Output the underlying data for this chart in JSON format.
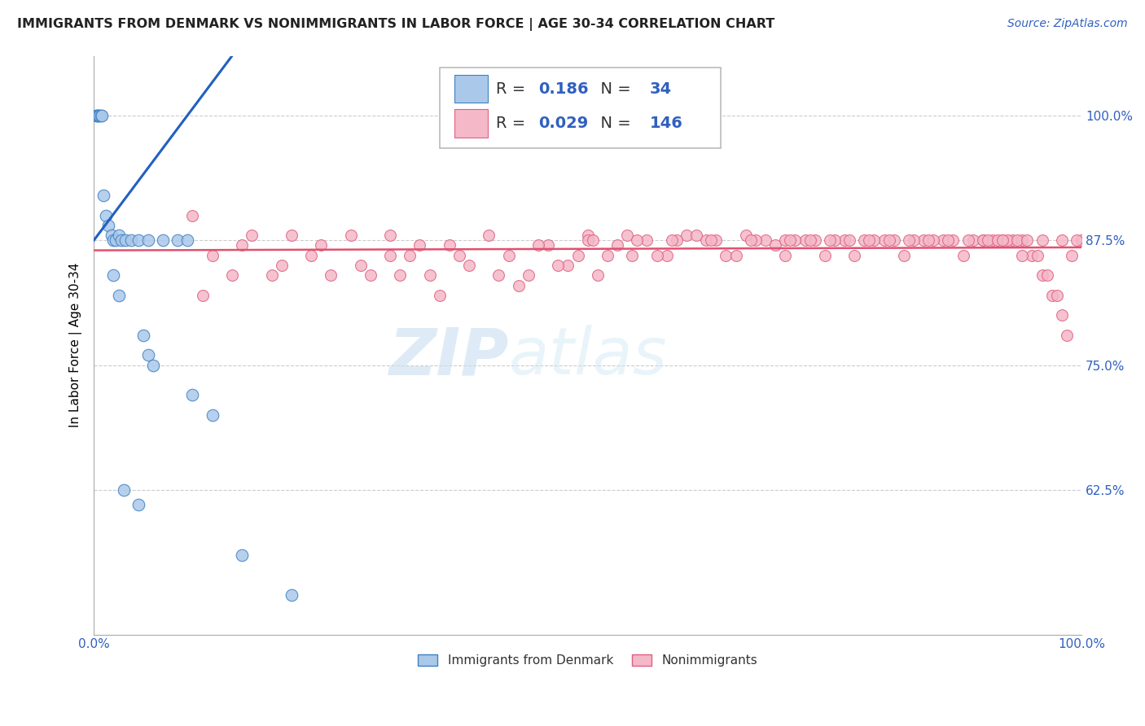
{
  "title": "IMMIGRANTS FROM DENMARK VS NONIMMIGRANTS IN LABOR FORCE | AGE 30-34 CORRELATION CHART",
  "source": "Source: ZipAtlas.com",
  "ylabel": "In Labor Force | Age 30-34",
  "ytick_labels": [
    "62.5%",
    "75.0%",
    "87.5%",
    "100.0%"
  ],
  "ytick_values": [
    0.625,
    0.75,
    0.875,
    1.0
  ],
  "xlim": [
    0.0,
    1.0
  ],
  "ylim": [
    0.48,
    1.06
  ],
  "legend_label1": "Immigrants from Denmark",
  "legend_label2": "Nonimmigrants",
  "r1": 0.186,
  "n1": 34,
  "r2": 0.029,
  "n2": 146,
  "color_blue": "#aac8ea",
  "color_pink": "#f4b8c8",
  "edge_blue": "#4080c0",
  "edge_pink": "#e06080",
  "line_blue": "#2060c0",
  "line_pink": "#e05070",
  "watermark_zip": "ZIP",
  "watermark_atlas": "atlas",
  "grid_color": "#cccccc"
}
